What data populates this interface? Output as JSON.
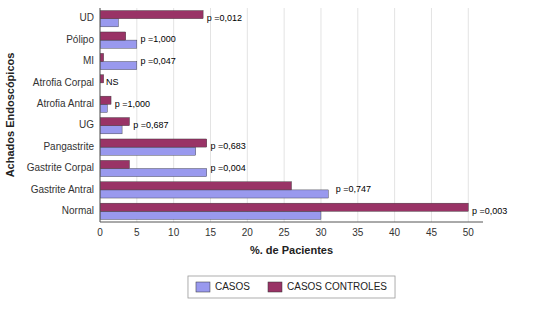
{
  "chart_data": {
    "type": "bar",
    "orientation": "horizontal",
    "categories": [
      "Normal",
      "Gastrite Antral",
      "Gastrite Corpal",
      "Pangastrite",
      "UG",
      "Atrofia Antral",
      "Atrofia Corpal",
      "MI",
      "Pólipo",
      "UD"
    ],
    "series": [
      {
        "name": "CASOS",
        "color": "#9999EE",
        "values": [
          30.0,
          31.0,
          14.5,
          13.0,
          3.0,
          1.0,
          0.0,
          5.0,
          5.0,
          2.5
        ]
      },
      {
        "name": "CASOS CONTROLES",
        "color": "#993366",
        "values": [
          50.0,
          26.0,
          4.0,
          14.5,
          4.0,
          1.5,
          0.5,
          0.5,
          3.5,
          14.0
        ]
      }
    ],
    "annotations": [
      {
        "text": "p =0,003",
        "x": 50.5,
        "category": "Normal"
      },
      {
        "text": "p =0,747",
        "x": 32.0,
        "category": "Gastrite Antral"
      },
      {
        "text": "p =0,004",
        "x": 15.0,
        "category": "Gastrite Corpal"
      },
      {
        "text": "p =0,683",
        "x": 15.0,
        "category": "Pangastrite"
      },
      {
        "text": "p =0,687",
        "x": 4.5,
        "category": "UG"
      },
      {
        "text": "p =1,000",
        "x": 2.0,
        "category": "Atrofia Antral"
      },
      {
        "text": "NS",
        "x": 0.8,
        "category": "Atrofia Corpal"
      },
      {
        "text": "p =0,047",
        "x": 5.5,
        "category": "MI"
      },
      {
        "text": "p =1,000",
        "x": 5.5,
        "category": "Pólipo"
      },
      {
        "text": "p =0,012",
        "x": 14.5,
        "category": "UD"
      }
    ],
    "x_label": "%. de Pacientes",
    "y_label": "Achados Endoscópicos",
    "xlim": [
      0,
      52
    ],
    "xticks": [
      0,
      5,
      10,
      15,
      20,
      25,
      30,
      35,
      40,
      45,
      50
    ],
    "grid": true,
    "legend": "bottom"
  }
}
